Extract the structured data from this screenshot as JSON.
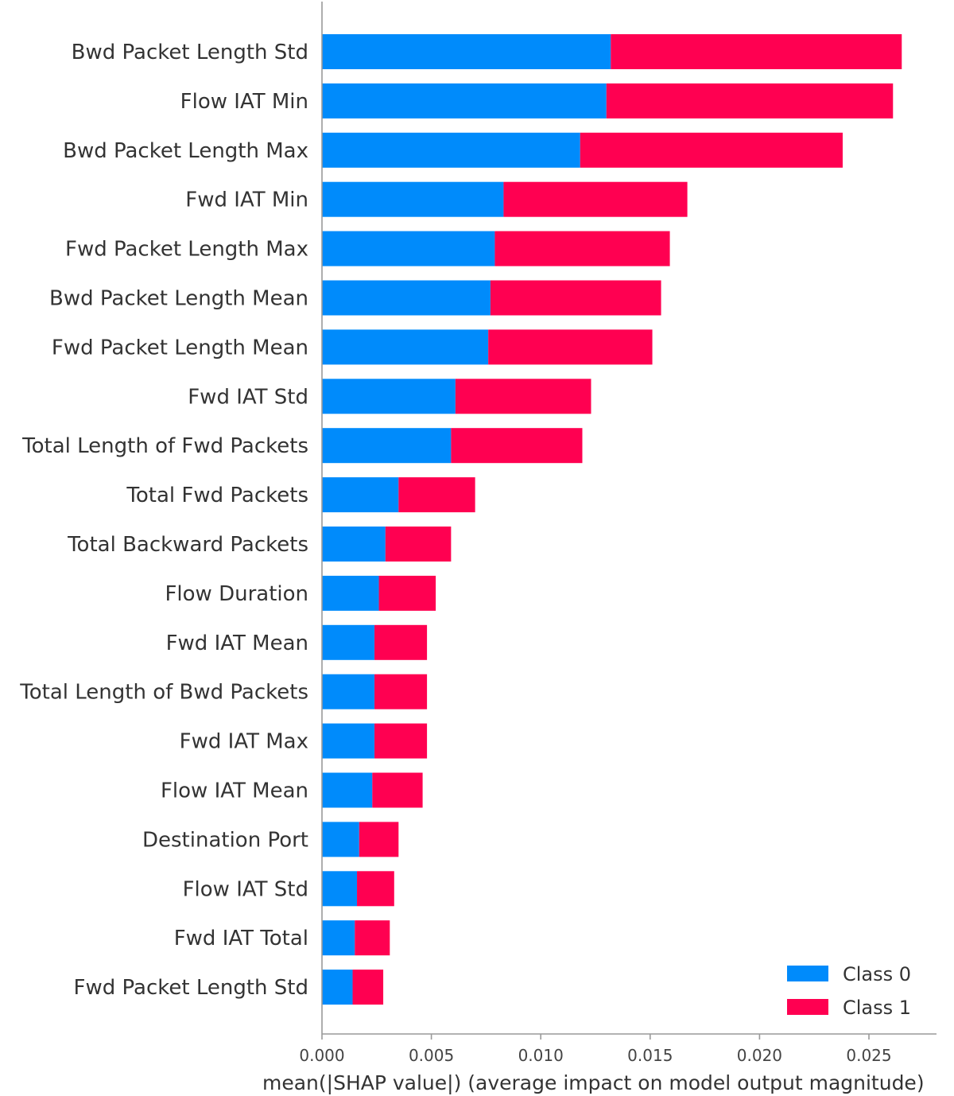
{
  "chart_data": {
    "type": "bar",
    "orientation": "horizontal",
    "stacked": true,
    "categories": [
      "Bwd Packet Length Std",
      "Flow IAT Min",
      "Bwd Packet Length Max",
      "Fwd IAT Min",
      "Fwd Packet Length Max",
      "Bwd Packet Length Mean",
      "Fwd Packet Length Mean",
      "Fwd IAT Std",
      "Total Length of Fwd Packets",
      "Total Fwd Packets",
      "Total Backward Packets",
      "Flow Duration",
      "Fwd IAT Mean",
      "Total Length of Bwd Packets",
      "Fwd IAT Max",
      "Flow IAT Mean",
      "Destination Port",
      "Flow IAT Std",
      "Fwd IAT Total",
      "Fwd Packet Length Std"
    ],
    "series": [
      {
        "name": "Class 0",
        "color": "#008bfb",
        "values": [
          0.0132,
          0.013,
          0.0118,
          0.0083,
          0.0079,
          0.0077,
          0.0076,
          0.0061,
          0.0059,
          0.0035,
          0.0029,
          0.0026,
          0.0024,
          0.0024,
          0.0024,
          0.0023,
          0.0017,
          0.0016,
          0.0015,
          0.0014
        ]
      },
      {
        "name": "Class 1",
        "color": "#ff0051",
        "values": [
          0.0133,
          0.0131,
          0.012,
          0.0084,
          0.008,
          0.0078,
          0.0075,
          0.0062,
          0.006,
          0.0035,
          0.003,
          0.0026,
          0.0024,
          0.0024,
          0.0024,
          0.0023,
          0.0018,
          0.0017,
          0.0016,
          0.0014
        ]
      }
    ],
    "xlim": [
      0,
      0.028
    ],
    "xticks": [
      0.0,
      0.005,
      0.01,
      0.015,
      0.02,
      0.025
    ],
    "xtick_labels": [
      "0.000",
      "0.005",
      "0.010",
      "0.015",
      "0.020",
      "0.025"
    ],
    "xlabel": "mean(|SHAP value|) (average impact on model output magnitude)",
    "ylabel": "",
    "title": "",
    "grid": false,
    "legend_position": "bottom-right"
  }
}
